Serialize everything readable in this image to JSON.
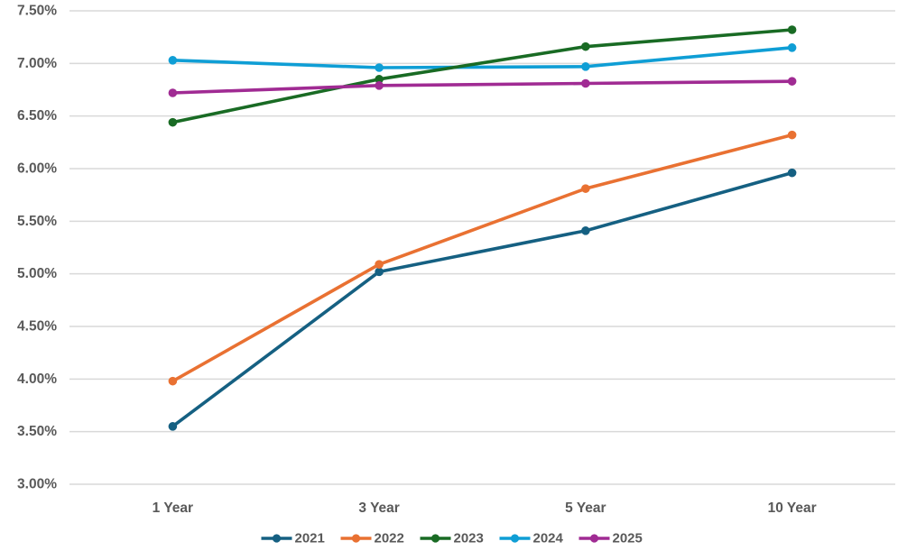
{
  "chart_data": {
    "type": "line",
    "title": "",
    "xlabel": "",
    "ylabel": "",
    "grid": true,
    "legend_position": "bottom-center",
    "categories": [
      "1 Year",
      "3 Year",
      "5 Year",
      "10 Year"
    ],
    "series": [
      {
        "name": "2021",
        "color": "#156082",
        "values": [
          3.55,
          5.02,
          5.41,
          5.96
        ]
      },
      {
        "name": "2022",
        "color": "#E97132",
        "values": [
          3.98,
          5.09,
          5.81,
          6.32
        ]
      },
      {
        "name": "2023",
        "color": "#196B24",
        "values": [
          6.44,
          6.85,
          7.16,
          7.32
        ]
      },
      {
        "name": "2024",
        "color": "#0F9ED5",
        "values": [
          7.03,
          6.96,
          6.97,
          7.15
        ]
      },
      {
        "name": "2025",
        "color": "#A02B93",
        "values": [
          6.72,
          6.79,
          6.81,
          6.83
        ]
      }
    ],
    "y_axis": {
      "min": 3.0,
      "max": 7.5,
      "step": 0.5,
      "ticks": [
        {
          "value": 3.0,
          "label": "3.00%"
        },
        {
          "value": 3.5,
          "label": "3.50%"
        },
        {
          "value": 4.0,
          "label": "4.00%"
        },
        {
          "value": 4.5,
          "label": "4.50%"
        },
        {
          "value": 5.0,
          "label": "5.00%"
        },
        {
          "value": 5.5,
          "label": "5.50%"
        },
        {
          "value": 6.0,
          "label": "6.00%"
        },
        {
          "value": 6.5,
          "label": "6.50%"
        },
        {
          "value": 7.0,
          "label": "7.00%"
        },
        {
          "value": 7.5,
          "label": "7.50%"
        }
      ]
    },
    "legend_entries": [
      "2021",
      "2022",
      "2023",
      "2024",
      "2025"
    ]
  },
  "styles": {
    "background": "#FFFFFF",
    "text_color": "#595959",
    "gridline_color": "#D9D9D9"
  }
}
